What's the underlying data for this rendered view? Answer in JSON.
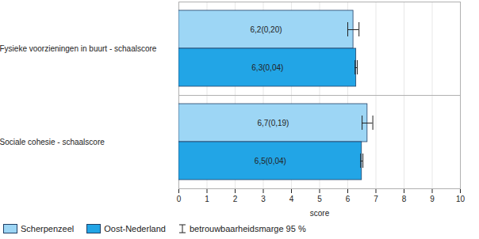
{
  "chart_data": {
    "type": "bar",
    "orientation": "horizontal",
    "categories": [
      "Fysieke voorzieningen in buurt - schaalscore",
      "Sociale cohesie - schaalscore"
    ],
    "series": [
      {
        "name": "Scherpenzeel",
        "color": "#9dd6f5",
        "values": [
          6.2,
          6.7
        ],
        "errors": [
          0.2,
          0.19
        ],
        "value_labels": [
          "6,2(0,20)",
          "6,7(0,19)"
        ]
      },
      {
        "name": "Oost-Nederland",
        "color": "#22a5e6",
        "values": [
          6.3,
          6.5
        ],
        "errors": [
          0.04,
          0.04
        ],
        "value_labels": [
          "6,3(0,04)",
          "6,5(0,04)"
        ]
      }
    ],
    "error_label": "betrouwbaarheidsmarge 95 %",
    "x_label": "score",
    "xlim": [
      0,
      10
    ],
    "xticks": [
      0,
      1,
      2,
      3,
      4,
      5,
      6,
      7,
      8,
      9,
      10
    ],
    "grid": true,
    "data_labels": true,
    "legend": "bottom"
  }
}
